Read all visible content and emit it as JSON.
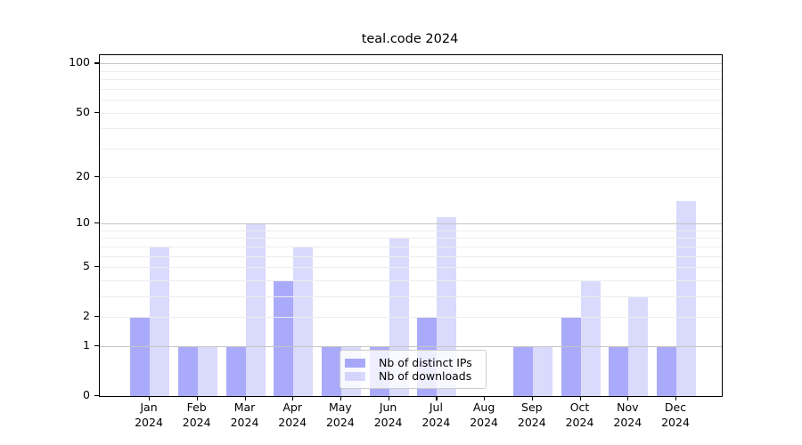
{
  "chart_data": {
    "type": "bar",
    "title": "teal.code 2024",
    "year": "2024",
    "months": [
      "Jan",
      "Feb",
      "Mar",
      "Apr",
      "May",
      "Jun",
      "Jul",
      "Aug",
      "Sep",
      "Oct",
      "Nov",
      "Dec"
    ],
    "categories": [
      "Jan 2024",
      "Feb 2024",
      "Mar 2024",
      "Apr 2024",
      "May 2024",
      "Jun 2024",
      "Jul 2024",
      "Aug 2024",
      "Sep 2024",
      "Oct 2024",
      "Nov 2024",
      "Dec 2024"
    ],
    "series": [
      {
        "name": "Nb of distinct IPs",
        "color_solid": "#aaaaf9",
        "color_rgba": "rgba(85,85,245,0.5)",
        "values": [
          2,
          1,
          1,
          4,
          1,
          1,
          2,
          0,
          1,
          2,
          1,
          1
        ]
      },
      {
        "name": "Nb of downloads",
        "color_solid": "#d9d9fb",
        "color_rgba": "rgba(85,85,245,0.22)",
        "values": [
          7,
          1,
          10,
          7,
          1,
          8,
          11,
          0,
          1,
          4,
          3,
          14
        ]
      }
    ],
    "yscale": "log1p",
    "ylim": [
      0,
      113
    ],
    "yticks": [
      100,
      50,
      20,
      10,
      5,
      2,
      1,
      0
    ],
    "grid_minor_values": [
      2,
      3,
      4,
      5,
      6,
      7,
      8,
      9,
      20,
      30,
      40,
      50,
      60,
      70,
      80,
      90
    ],
    "grid_major_values": [
      1,
      10,
      100
    ],
    "legend_position": "center-bottom",
    "grid": "horizontal",
    "colors": {
      "grid_minor": "#ededed",
      "grid_major": "#c6c6c6",
      "axis": "#000000",
      "legend_border": "#cccccc"
    }
  }
}
